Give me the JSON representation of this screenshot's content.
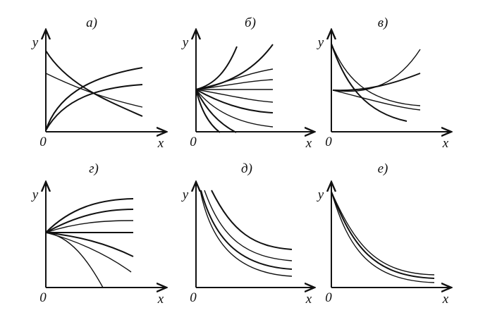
{
  "panels": [
    {
      "label": "а)",
      "y_label": "y",
      "x_label": "x",
      "origin_label": "0"
    },
    {
      "label": "б)",
      "y_label": "y",
      "x_label": "x",
      "origin_label": "0"
    },
    {
      "label": "в)",
      "y_label": "y",
      "x_label": "x",
      "origin_label": "0"
    },
    {
      "label": "г)",
      "y_label": "y",
      "x_label": "x",
      "origin_label": "0"
    },
    {
      "label": "д)",
      "y_label": "y",
      "x_label": "x",
      "origin_label": "0"
    },
    {
      "label": "е)",
      "y_label": "y",
      "x_label": "x",
      "origin_label": "0"
    }
  ]
}
